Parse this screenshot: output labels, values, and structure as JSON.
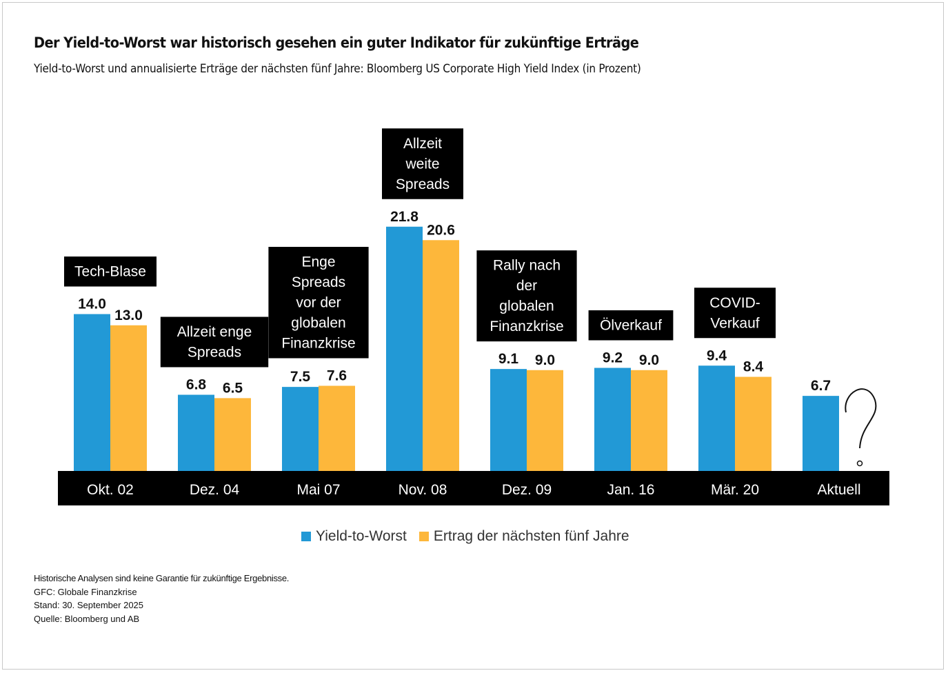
{
  "header": {
    "title": "Der Yield-to-Worst war historisch gesehen ein guter Indikator für zukünftige Erträge",
    "subtitle": "Yield-to-Worst und annualisierte Erträge der nächsten fünf Jahre: Bloomberg US Corporate High Yield Index (in Prozent)"
  },
  "colors": {
    "yield_to_worst": "#2299d6",
    "forward_return": "#fdb73b",
    "annotation_bg": "#000000",
    "axis_band": "#000000"
  },
  "chart_data": {
    "type": "bar",
    "title": "Der Yield-to-Worst war historisch gesehen ein guter Indikator für zukünftige Erträge",
    "subtitle": "Yield-to-Worst und annualisierte Erträge der nächsten fünf Jahre: Bloomberg US Corporate High Yield Index (in Prozent)",
    "xlabel": "",
    "ylabel": "",
    "ylim": [
      0,
      22
    ],
    "grid": false,
    "legend_position": "bottom-center",
    "categories": [
      "Okt. 02",
      "Dez. 04",
      "Mai 07",
      "Nov. 08",
      "Dez. 09",
      "Jan. 16",
      "Mär. 20",
      "Aktuell"
    ],
    "series": [
      {
        "name": "Yield-to-Worst",
        "values": [
          14.0,
          6.8,
          7.5,
          21.8,
          9.1,
          9.2,
          9.4,
          6.7
        ]
      },
      {
        "name": "Ertrag der nächsten fünf Jahre",
        "values": [
          13.0,
          6.5,
          7.6,
          20.6,
          9.0,
          9.0,
          8.4,
          null
        ]
      }
    ],
    "data_labels": [
      [
        "14.0",
        "6.8",
        "7.5",
        "21.8",
        "9.1",
        "9.2",
        "9.4",
        "6.7"
      ],
      [
        "13.0",
        "6.5",
        "7.6",
        "20.6",
        "9.0",
        "9.0",
        "8.4",
        null
      ]
    ],
    "annotations": [
      {
        "category": "Okt. 02",
        "lines": [
          "Tech-Blase"
        ]
      },
      {
        "category": "Dez. 04",
        "lines": [
          "Allzeit enge",
          "Spreads"
        ]
      },
      {
        "category": "Mai 07",
        "lines": [
          "Enge",
          "Spreads",
          "vor der",
          "globalen",
          "Finanzkrise"
        ]
      },
      {
        "category": "Nov. 08",
        "lines": [
          "Allzeit",
          "weite",
          "Spreads"
        ]
      },
      {
        "category": "Dez. 09",
        "lines": [
          "Rally nach",
          "der",
          "globalen",
          "Finanzkrise"
        ]
      },
      {
        "category": "Jan. 16",
        "lines": [
          "Ölverkauf"
        ]
      },
      {
        "category": "Mär. 20",
        "lines": [
          "COVID-",
          "Verkauf"
        ]
      }
    ],
    "unknown_marker": {
      "category": "Aktuell",
      "symbol": "?"
    }
  },
  "legend": [
    {
      "label": "Yield-to-Worst",
      "color": "#2299d6"
    },
    {
      "label": "Ertrag der nächsten fünf Jahre",
      "color": "#fdb73b"
    }
  ],
  "notes": [
    "Historische Analysen sind keine Garantie für zukünftige Ergebnisse.",
    "GFC: Globale Finanzkrise",
    "Stand: 30. September 2025",
    "Quelle: Bloomberg und AB"
  ]
}
